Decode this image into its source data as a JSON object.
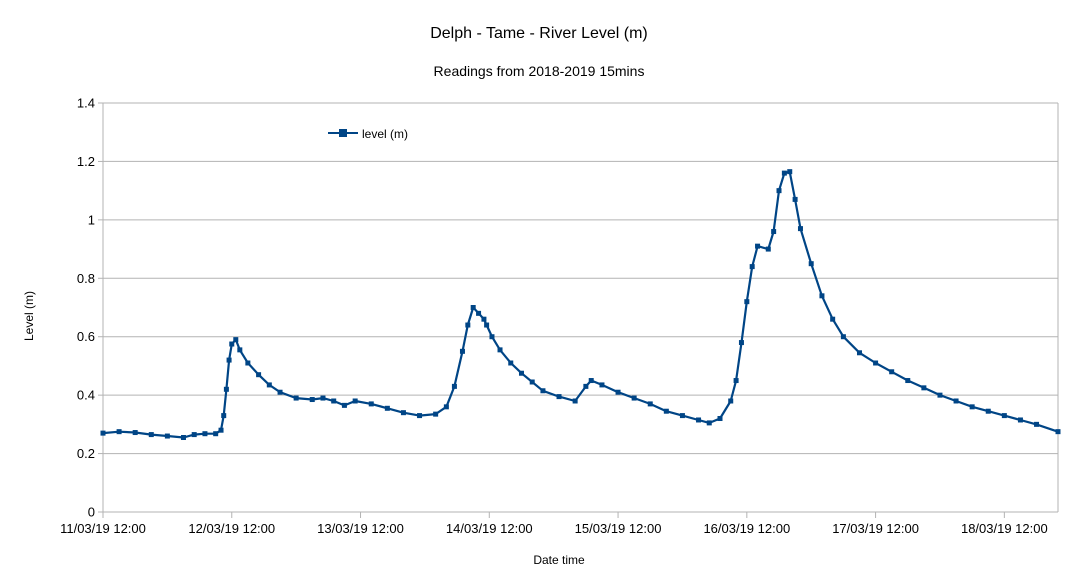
{
  "chart_data": {
    "type": "line",
    "title": "Delph - Tame - River Level (m)",
    "subtitle": "Readings from 2018-2019 15mins",
    "xlabel": "Date time",
    "ylabel": "Level (m)",
    "ylim": [
      0,
      1.4
    ],
    "yticks": [
      "0",
      "0.2",
      "0.4",
      "0.6",
      "0.8",
      "1",
      "1.2",
      "1.4"
    ],
    "xlim": [
      "11/03/19 12:00",
      "18/03/19 22:00"
    ],
    "xticks": [
      "11/03/19 12:00",
      "12/03/19 12:00",
      "13/03/19 12:00",
      "14/03/19 12:00",
      "15/03/19 12:00",
      "16/03/19 12:00",
      "17/03/19 12:00",
      "18/03/19 12:00"
    ],
    "grid": "horizontal",
    "legend_position": "top-left inside plot",
    "series": [
      {
        "name": "level (m)",
        "color": "#004586",
        "marker": "square",
        "points": [
          [
            "11/03/19 12:00",
            0.27
          ],
          [
            "11/03/19 15:00",
            0.275
          ],
          [
            "11/03/19 18:00",
            0.272
          ],
          [
            "11/03/19 21:00",
            0.265
          ],
          [
            "12/03/19 00:00",
            0.26
          ],
          [
            "12/03/19 03:00",
            0.255
          ],
          [
            "12/03/19 05:00",
            0.265
          ],
          [
            "12/03/19 07:00",
            0.268
          ],
          [
            "12/03/19 09:00",
            0.268
          ],
          [
            "12/03/19 10:00",
            0.28
          ],
          [
            "12/03/19 10:30",
            0.33
          ],
          [
            "12/03/19 11:00",
            0.42
          ],
          [
            "12/03/19 11:30",
            0.52
          ],
          [
            "12/03/19 12:00",
            0.575
          ],
          [
            "12/03/19 12:45",
            0.59
          ],
          [
            "12/03/19 13:30",
            0.555
          ],
          [
            "12/03/19 15:00",
            0.51
          ],
          [
            "12/03/19 17:00",
            0.47
          ],
          [
            "12/03/19 19:00",
            0.435
          ],
          [
            "12/03/19 21:00",
            0.41
          ],
          [
            "13/03/19 00:00",
            0.39
          ],
          [
            "13/03/19 03:00",
            0.385
          ],
          [
            "13/03/19 05:00",
            0.39
          ],
          [
            "13/03/19 07:00",
            0.38
          ],
          [
            "13/03/19 09:00",
            0.365
          ],
          [
            "13/03/19 11:00",
            0.38
          ],
          [
            "13/03/19 14:00",
            0.37
          ],
          [
            "13/03/19 17:00",
            0.355
          ],
          [
            "13/03/19 20:00",
            0.34
          ],
          [
            "13/03/19 23:00",
            0.33
          ],
          [
            "14/03/19 02:00",
            0.335
          ],
          [
            "14/03/19 04:00",
            0.36
          ],
          [
            "14/03/19 05:30",
            0.43
          ],
          [
            "14/03/19 07:00",
            0.55
          ],
          [
            "14/03/19 08:00",
            0.64
          ],
          [
            "14/03/19 09:00",
            0.7
          ],
          [
            "14/03/19 10:00",
            0.68
          ],
          [
            "14/03/19 11:00",
            0.66
          ],
          [
            "14/03/19 11:30",
            0.64
          ],
          [
            "14/03/19 12:30",
            0.6
          ],
          [
            "14/03/19 14:00",
            0.555
          ],
          [
            "14/03/19 16:00",
            0.51
          ],
          [
            "14/03/19 18:00",
            0.475
          ],
          [
            "14/03/19 20:00",
            0.445
          ],
          [
            "14/03/19 22:00",
            0.415
          ],
          [
            "15/03/19 01:00",
            0.395
          ],
          [
            "15/03/19 04:00",
            0.38
          ],
          [
            "15/03/19 06:00",
            0.43
          ],
          [
            "15/03/19 07:00",
            0.45
          ],
          [
            "15/03/19 09:00",
            0.435
          ],
          [
            "15/03/19 12:00",
            0.41
          ],
          [
            "15/03/19 15:00",
            0.39
          ],
          [
            "15/03/19 18:00",
            0.37
          ],
          [
            "15/03/19 21:00",
            0.345
          ],
          [
            "16/03/19 00:00",
            0.33
          ],
          [
            "16/03/19 03:00",
            0.315
          ],
          [
            "16/03/19 05:00",
            0.305
          ],
          [
            "16/03/19 07:00",
            0.32
          ],
          [
            "16/03/19 09:00",
            0.38
          ],
          [
            "16/03/19 10:00",
            0.45
          ],
          [
            "16/03/19 11:00",
            0.58
          ],
          [
            "16/03/19 12:00",
            0.72
          ],
          [
            "16/03/19 13:00",
            0.84
          ],
          [
            "16/03/19 14:00",
            0.91
          ],
          [
            "16/03/19 16:00",
            0.9
          ],
          [
            "16/03/19 17:00",
            0.96
          ],
          [
            "16/03/19 18:00",
            1.1
          ],
          [
            "16/03/19 19:00",
            1.16
          ],
          [
            "16/03/19 20:00",
            1.165
          ],
          [
            "16/03/19 21:00",
            1.07
          ],
          [
            "16/03/19 22:00",
            0.97
          ],
          [
            "17/03/19 00:00",
            0.85
          ],
          [
            "17/03/19 02:00",
            0.74
          ],
          [
            "17/03/19 04:00",
            0.66
          ],
          [
            "17/03/19 06:00",
            0.6
          ],
          [
            "17/03/19 09:00",
            0.545
          ],
          [
            "17/03/19 12:00",
            0.51
          ],
          [
            "17/03/19 15:00",
            0.48
          ],
          [
            "17/03/19 18:00",
            0.45
          ],
          [
            "17/03/19 21:00",
            0.425
          ],
          [
            "18/03/19 00:00",
            0.4
          ],
          [
            "18/03/19 03:00",
            0.38
          ],
          [
            "18/03/19 06:00",
            0.36
          ],
          [
            "18/03/19 09:00",
            0.345
          ],
          [
            "18/03/19 12:00",
            0.33
          ],
          [
            "18/03/19 15:00",
            0.315
          ],
          [
            "18/03/19 18:00",
            0.3
          ],
          [
            "18/03/19 22:00",
            0.275
          ]
        ]
      }
    ]
  }
}
